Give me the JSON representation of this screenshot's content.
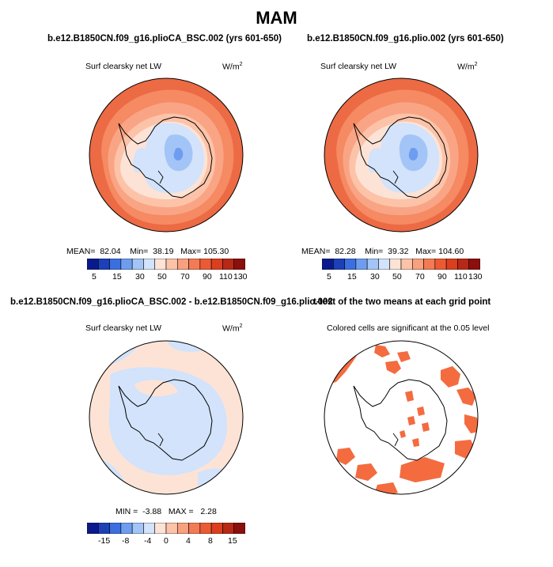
{
  "title": "MAM",
  "panels": [
    {
      "title": "b.e12.B1850CN.f09_g16.plioCA_BSC.002 (yrs 601-650)",
      "variable": "Surf clearsky net LW",
      "units": "W/m",
      "units_exp": "2",
      "stats": {
        "mean_label": "MEAN=",
        "mean": "82.04",
        "min_label": "Min=",
        "min": "38.19",
        "max_label": "Max=",
        "max": "105.30"
      },
      "colorbar_labels": [
        "5",
        "15",
        "30",
        "50",
        "70",
        "90",
        "110",
        "130"
      ]
    },
    {
      "title": "b.e12.B1850CN.f09_g16.plio.002 (yrs 601-650)",
      "variable": "Surf clearsky net LW",
      "units": "W/m",
      "units_exp": "2",
      "stats": {
        "mean_label": "MEAN=",
        "mean": "82.28",
        "min_label": "Min=",
        "min": "39.32",
        "max_label": "Max=",
        "max": "104.60"
      },
      "colorbar_labels": [
        "5",
        "15",
        "30",
        "50",
        "70",
        "90",
        "110",
        "130"
      ]
    },
    {
      "title": "b.e12.B1850CN.f09_g16.plioCA_BSC.002 - b.e12.B1850CN.f09_g16.plio.002",
      "variable": "Surf clearsky net LW",
      "units": "W/m",
      "units_exp": "2",
      "stats": {
        "min_label": "MIN =",
        "min": "-3.88",
        "max_label": "MAX =",
        "max": "2.28"
      },
      "colorbar_labels": [
        "-15",
        "-8",
        "-4",
        "0",
        "4",
        "8",
        "15"
      ]
    },
    {
      "title": "t-test of the two means at each grid point",
      "subtitle": "Colored cells are significant at the 0.05 level"
    }
  ],
  "colors": {
    "abs_scale": [
      "#0a1a8c",
      "#1d3fb8",
      "#3b6fe0",
      "#6e9df0",
      "#a3c4f6",
      "#d2e3fb",
      "#fde3d6",
      "#fcc3a8",
      "#f9a07e",
      "#f47a56",
      "#ec5a34",
      "#db3f1f",
      "#b82817",
      "#8b0f0c"
    ],
    "diff_scale": [
      "#0a1a8c",
      "#1d3fb8",
      "#3b6fe0",
      "#6e9df0",
      "#a3c4f6",
      "#d2e3fb",
      "#fde3d6",
      "#fcc3a8",
      "#f9a07e",
      "#f47a56",
      "#ec5a34",
      "#db3f1f",
      "#b82817",
      "#8b0f0c"
    ],
    "significant": "#f46b40"
  }
}
